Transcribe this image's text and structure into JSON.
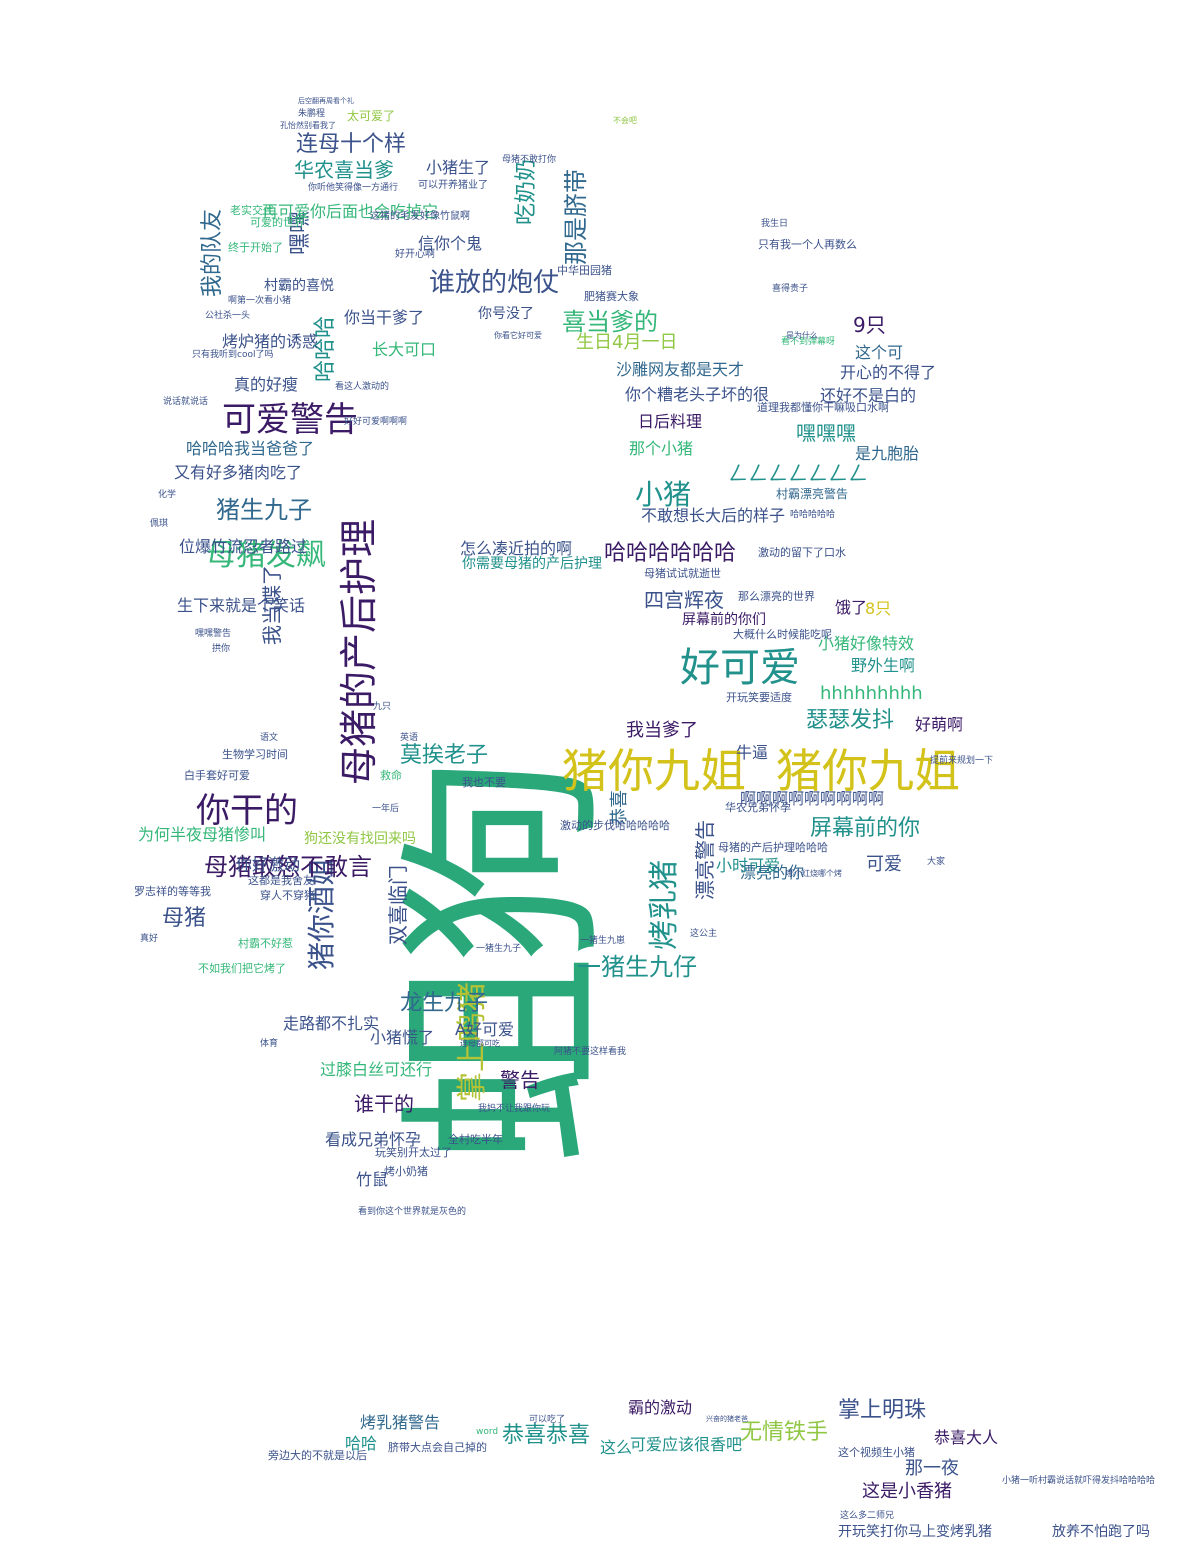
{
  "palette": {
    "deep_purple": "#440154",
    "indigo": "#3b528b",
    "slate_blue": "#31688e",
    "teal": "#21918c",
    "green": "#35b779",
    "sea_green": "#2a9d78",
    "yellow_green": "#90d743",
    "yellow": "#c8d51e"
  },
  "words": [
    {
      "text": "狗",
      "color": "#2aa87a"
    },
    {
      "text": "蛆",
      "color": "#2aa87a"
    },
    {
      "text": "母猪的产后护理",
      "color": "#3b1a66"
    },
    {
      "text": "猪你九姐",
      "color": "#d3c21a"
    },
    {
      "text": "猪你九姐",
      "color": "#d3c21a"
    },
    {
      "text": "可爱警告",
      "color": "#3b1a66"
    },
    {
      "text": "好可爱",
      "color": "#21918c"
    },
    {
      "text": "你干的",
      "color": "#3b1a66"
    },
    {
      "text": "掌上鸣猪",
      "color": "#b5c234"
    },
    {
      "text": "母猪发飙",
      "color": "#35b779"
    },
    {
      "text": "谁放的炮仗",
      "color": "#3b528b"
    },
    {
      "text": "小猪",
      "color": "#21918c"
    },
    {
      "text": "烤乳猪",
      "color": "#21918c"
    },
    {
      "text": "猪你酒姐",
      "color": "#3b528b"
    },
    {
      "text": "一猪生九仔",
      "color": "#21918c"
    },
    {
      "text": "猪生九子",
      "color": "#31688e"
    },
    {
      "text": "屏幕前的你",
      "color": "#21918c"
    },
    {
      "text": "母猪敢怒不敢言",
      "color": "#3b1a66"
    },
    {
      "text": "龙生九子",
      "color": "#31688e"
    },
    {
      "text": "那是脐带",
      "color": "#31688e"
    },
    {
      "text": "连母十个样",
      "color": "#3b528b"
    },
    {
      "text": "华农喜当爹",
      "color": "#21918c"
    },
    {
      "text": "喜当爹的",
      "color": "#35b779"
    },
    {
      "text": "哈哈哈",
      "color": "#21918c"
    },
    {
      "text": "吃奶奶",
      "color": "#21918c"
    },
    {
      "text": "嘿嘿",
      "color": "#3b528b"
    },
    {
      "text": "我的队友",
      "color": "#31688e"
    },
    {
      "text": "哈哈哈哈哈哈",
      "color": "#3b1a66"
    },
    {
      "text": "四宫辉夜",
      "color": "#3b528b"
    },
    {
      "text": "瑟瑟发抖",
      "color": "#21918c"
    },
    {
      "text": "莫挨老子",
      "color": "#21918c"
    },
    {
      "text": "恭喜恭喜",
      "color": "#21918c"
    },
    {
      "text": "无情铁手",
      "color": "#90c744"
    },
    {
      "text": "掌上明珠",
      "color": "#3b528b"
    },
    {
      "text": "母猪",
      "color": "#3b528b"
    },
    {
      "text": "双喜临门",
      "color": "#3b528b"
    },
    {
      "text": "漂亮警告",
      "color": "#3b528b"
    },
    {
      "text": "9只",
      "color": "#3b1a66"
    },
    {
      "text": "嘿嘿嘿",
      "color": "#21918c"
    },
    {
      "text": "hhhhhhhhh",
      "color": "#35b779"
    },
    {
      "text": "生日4月一日",
      "color": "#90c744"
    },
    {
      "text": "我当爹了",
      "color": "#3b1a66"
    },
    {
      "text": "警告",
      "color": "#3b1a66"
    },
    {
      "text": "谁干的",
      "color": "#3b1a66"
    },
    {
      "text": "恭喜",
      "color": "#31688e"
    },
    {
      "text": "那一夜",
      "color": "#3b528b"
    },
    {
      "text": "这是小香猪",
      "color": "#3b1a66"
    },
    {
      "text": "恭喜大人",
      "color": "#3b1a66"
    },
    {
      "text": "烤乳猪警告",
      "color": "#31688e"
    },
    {
      "text": "长大可口",
      "color": "#35b779"
    },
    {
      "text": "那个小猪",
      "color": "#35b779"
    },
    {
      "text": "日后料理",
      "color": "#3b1a66"
    },
    {
      "text": "沙雕网友都是天才",
      "color": "#31688e"
    },
    {
      "text": "可爱",
      "color": "#3b528b"
    },
    {
      "text": "啊啊啊啊啊啊啊啊啊",
      "color": "#3b528b"
    },
    {
      "text": "你当干爹了",
      "color": "#3b528b"
    },
    {
      "text": "信你个鬼",
      "color": "#3b528b"
    },
    {
      "text": "是九胞胎",
      "color": "#31688e"
    },
    {
      "text": "ㄥㄥㄥㄥㄥㄥㄥ",
      "color": "#21918c"
    },
    {
      "text": "还好不是白的",
      "color": "#3b528b"
    },
    {
      "text": "开心的不得了",
      "color": "#3b528b"
    },
    {
      "text": "这个可",
      "color": "#31688e"
    },
    {
      "text": "野外生啊",
      "color": "#21918c"
    },
    {
      "text": "好萌啊",
      "color": "#3b1a66"
    },
    {
      "text": "小猪好像特效",
      "color": "#35b779"
    },
    {
      "text": "小时可爱",
      "color": "#21918c"
    },
    {
      "text": "漂亮的你",
      "color": "#31688e"
    },
    {
      "text": "牛逼",
      "color": "#3b528b"
    },
    {
      "text": "饿了",
      "color": "#3b1a66"
    },
    {
      "text": "8只",
      "color": "#d3c21a"
    },
    {
      "text": "小猪生了",
      "color": "#3b528b"
    },
    {
      "text": "再可爱你后面也会吃掉它",
      "color": "#35b779"
    },
    {
      "text": "烤炉猪的诱惑",
      "color": "#3b528b"
    },
    {
      "text": "真的好瘦",
      "color": "#3b528b"
    },
    {
      "text": "村霸的喜悦",
      "color": "#3b528b"
    },
    {
      "text": "哈哈哈我当爸爸了",
      "color": "#31688e"
    },
    {
      "text": "又有好多猪肉吃了",
      "color": "#3b528b"
    },
    {
      "text": "位爆竹流忍者路过",
      "color": "#3b528b"
    },
    {
      "text": "生下来就是个笑话",
      "color": "#3b528b"
    },
    {
      "text": "我当蝶了",
      "color": "#3b528b"
    },
    {
      "text": "为何半夜母猪惨叫",
      "color": "#35b779"
    },
    {
      "text": "你好激动",
      "color": "#3b528b"
    },
    {
      "text": "走路都不扎实",
      "color": "#3b528b"
    },
    {
      "text": "小猪慌了",
      "color": "#3b528b"
    },
    {
      "text": "看成兄弟怀孕",
      "color": "#3b528b"
    },
    {
      "text": "过膝白丝可还行",
      "color": "#35b779"
    },
    {
      "text": "狗还没有找回来吗",
      "color": "#90c744"
    },
    {
      "text": "竹鼠",
      "color": "#3b528b"
    },
    {
      "text": "A好可爱",
      "color": "#3b528b"
    },
    {
      "text": "不敢想长大后的样子",
      "color": "#3b528b"
    },
    {
      "text": "怎么凑近拍的啊",
      "color": "#3b528b"
    },
    {
      "text": "你需要母猪的产后护理",
      "color": "#21918c"
    },
    {
      "text": "你个糟老头子坏的很",
      "color": "#3b528b"
    },
    {
      "text": "屏幕前的你们",
      "color": "#3b1a66"
    },
    {
      "text": "可爱应该很香吧",
      "color": "#21918c"
    },
    {
      "text": "霸的激动",
      "color": "#3b1a66"
    },
    {
      "text": "哈哈",
      "color": "#21918c"
    },
    {
      "text": "这么",
      "color": "#21918c"
    },
    {
      "text": "开玩笑打你马上变烤乳猪",
      "color": "#3b528b"
    },
    {
      "text": "放养不怕跑了吗",
      "color": "#3b528b"
    },
    {
      "text": "你号没了",
      "color": "#3b528b"
    },
    {
      "text": "村霸漂亮警告",
      "color": "#31688e"
    },
    {
      "text": "中华田园猪",
      "color": "#3b528b"
    },
    {
      "text": "只有我一个人再数么",
      "color": "#3b528b"
    },
    {
      "text": "道理我都懂你干嘛吸口水啊",
      "color": "#3b528b"
    },
    {
      "text": "激动的步伐哈哈哈哈哈",
      "color": "#3b528b"
    },
    {
      "text": "母猪的产后护理哈哈哈",
      "color": "#3b528b"
    },
    {
      "text": "华农兄弟怀孕",
      "color": "#3b528b"
    },
    {
      "text": "全村吃半年",
      "color": "#3b528b"
    },
    {
      "text": "玩笑别开太过了",
      "color": "#3b528b"
    },
    {
      "text": "烤小奶猪",
      "color": "#3b528b"
    },
    {
      "text": "看到你这个世界就是灰色的",
      "color": "#3b528b"
    },
    {
      "text": "穿人不穿猪",
      "color": "#3b528b"
    },
    {
      "text": "这都是我舍友",
      "color": "#3b528b"
    },
    {
      "text": "村霸不好惹",
      "color": "#35b779"
    },
    {
      "text": "不如我们把它烤了",
      "color": "#35b779"
    },
    {
      "text": "罗志祥的等等我",
      "color": "#3b528b"
    },
    {
      "text": "哈哈哈哈哈",
      "color": "#3b528b"
    },
    {
      "text": "肥猪赛大象",
      "color": "#3b528b"
    },
    {
      "text": "那么漂亮的世界",
      "color": "#3b528b"
    },
    {
      "text": "激动的留下了口水",
      "color": "#3b528b"
    },
    {
      "text": "母猪试试就逝世",
      "color": "#3b528b"
    },
    {
      "text": "大概什么时候能吃呢",
      "color": "#3b528b"
    },
    {
      "text": "开玩笑要适度",
      "color": "#3b528b"
    },
    {
      "text": "生物学习时间",
      "color": "#3b528b"
    },
    {
      "text": "白手套好可爱",
      "color": "#3b528b"
    },
    {
      "text": "这个视频生小猪",
      "color": "#3b528b"
    },
    {
      "text": "旁边大的不就是以后",
      "color": "#3b528b"
    },
    {
      "text": "脐带大点会自己掉的",
      "color": "#3b528b"
    },
    {
      "text": "这么多二师兄",
      "color": "#3b528b"
    },
    {
      "text": "小猪一听村霸说话就吓得发抖哈哈哈哈",
      "color": "#3b528b"
    },
    {
      "text": "太可爱了",
      "color": "#90c744"
    },
    {
      "text": "朱鹏程",
      "color": "#3b528b"
    },
    {
      "text": "可以开养猪业了",
      "color": "#3b528b"
    },
    {
      "text": "你听他笑得像一方通行",
      "color": "#3b528b"
    },
    {
      "text": "这猪的毛发好像竹鼠啊",
      "color": "#3b528b"
    },
    {
      "text": "母猪不敢打你",
      "color": "#3b528b"
    },
    {
      "text": "可爱的世界",
      "color": "#35b779"
    },
    {
      "text": "终于开始了",
      "color": "#35b779"
    },
    {
      "text": "老实交代",
      "color": "#35b779"
    },
    {
      "text": "好开心啊",
      "color": "#3b528b"
    },
    {
      "text": "我生日",
      "color": "#3b528b"
    },
    {
      "text": "喜得贵子",
      "color": "#3b528b"
    },
    {
      "text": "看不到弹幕呀",
      "color": "#35b779"
    },
    {
      "text": "好好可爱啊啊啊",
      "color": "#3b528b"
    },
    {
      "text": "说话就说话",
      "color": "#3b528b"
    },
    {
      "text": "化学",
      "color": "#3b528b"
    },
    {
      "text": "佩琪",
      "color": "#3b528b"
    },
    {
      "text": "嘿嘿警告",
      "color": "#3b528b"
    },
    {
      "text": "拱你",
      "color": "#3b528b"
    },
    {
      "text": "语文",
      "color": "#3b528b"
    },
    {
      "text": "真好",
      "color": "#3b528b"
    },
    {
      "text": "体育",
      "color": "#3b528b"
    },
    {
      "text": "一年后",
      "color": "#3b528b"
    },
    {
      "text": "我也不要",
      "color": "#3b528b"
    },
    {
      "text": "救命",
      "color": "#35b779"
    },
    {
      "text": "英语",
      "color": "#3b528b"
    },
    {
      "text": "九只",
      "color": "#3b528b"
    },
    {
      "text": "一猪生九子",
      "color": "#3b528b"
    },
    {
      "text": "一猪生九崽",
      "color": "#3b528b"
    },
    {
      "text": "这公主",
      "color": "#3b528b"
    },
    {
      "text": "大家",
      "color": "#3b528b"
    },
    {
      "text": "公社杀一头",
      "color": "#3b528b"
    },
    {
      "text": "啊第一次看小猪",
      "color": "#3b528b"
    },
    {
      "text": "只有我听到cool了吗",
      "color": "#3b528b"
    },
    {
      "text": "看这人激动的",
      "color": "#3b528b"
    },
    {
      "text": "提前来规划一下",
      "color": "#3b528b"
    },
    {
      "text": "我妈不让我跟你玩",
      "color": "#3b528b"
    },
    {
      "text": "阿猪不要这样看我",
      "color": "#3b528b"
    },
    {
      "text": "连母都可吃",
      "color": "#3b528b"
    },
    {
      "text": "孔怡然别看我了",
      "color": "#3b528b"
    },
    {
      "text": "后空翻再周看个礼",
      "color": "#3b528b"
    },
    {
      "text": "可以吃了",
      "color": "#3b528b"
    },
    {
      "text": "兴奋的猪老爸",
      "color": "#3b528b"
    },
    {
      "text": "word",
      "color": "#35b779"
    },
    {
      "text": "不会吧",
      "color": "#90c744"
    },
    {
      "text": "哪个红烧哪个烤",
      "color": "#3b528b"
    },
    {
      "text": "是为什么",
      "color": "#3b528b"
    },
    {
      "text": "你看它好可爱",
      "color": "#3b528b"
    }
  ]
}
